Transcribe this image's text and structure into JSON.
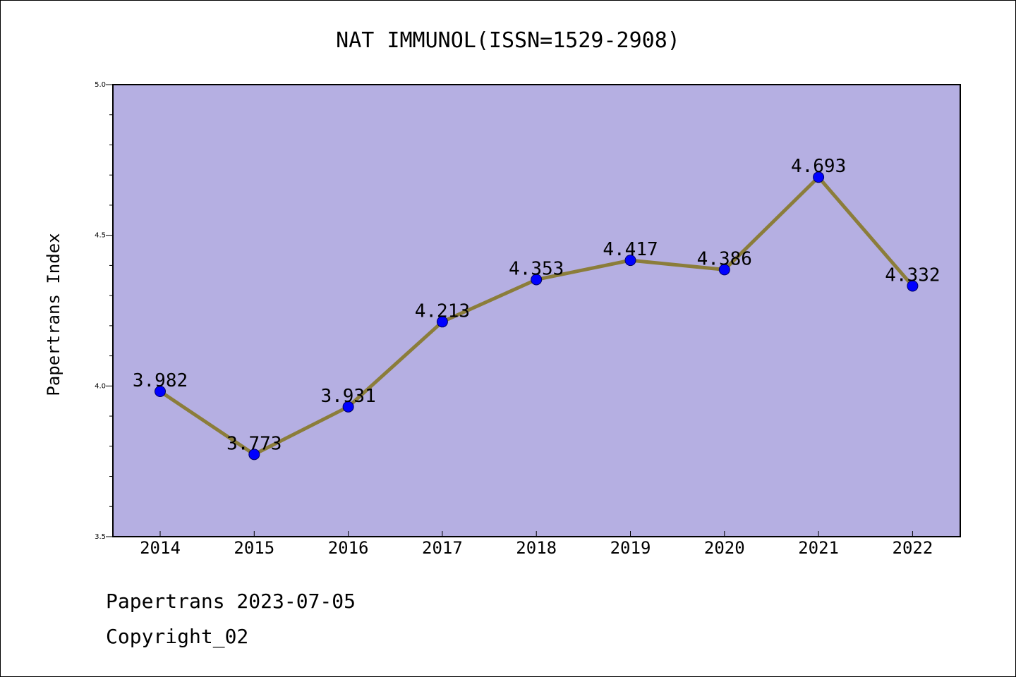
{
  "chart_data": {
    "type": "line",
    "title": "NAT IMMUNOL(ISSN=1529-2908)",
    "ylabel": "Papertrans Index",
    "xlabel": "",
    "categories": [
      "2014",
      "2015",
      "2016",
      "2017",
      "2018",
      "2019",
      "2020",
      "2021",
      "2022"
    ],
    "series": [
      {
        "values": [
          3.982,
          3.773,
          3.931,
          4.213,
          4.353,
          4.417,
          4.386,
          4.693,
          4.332
        ],
        "labels": [
          "3.982",
          "3.773",
          "3.931",
          "4.213",
          "4.353",
          "4.417",
          "4.386",
          "4.693",
          "4.332"
        ]
      }
    ],
    "ylim": [
      3.5,
      5.0
    ],
    "yticks": [
      "3.5",
      "4.0",
      "4.5",
      "5.0"
    ],
    "grid": false,
    "colors": {
      "plot_background": "#b5afe2",
      "line": "#8b7d3a",
      "marker": "#0000ff"
    }
  },
  "footer": {
    "line1": "Papertrans 2023-07-05",
    "line2": "Copyright_02"
  }
}
